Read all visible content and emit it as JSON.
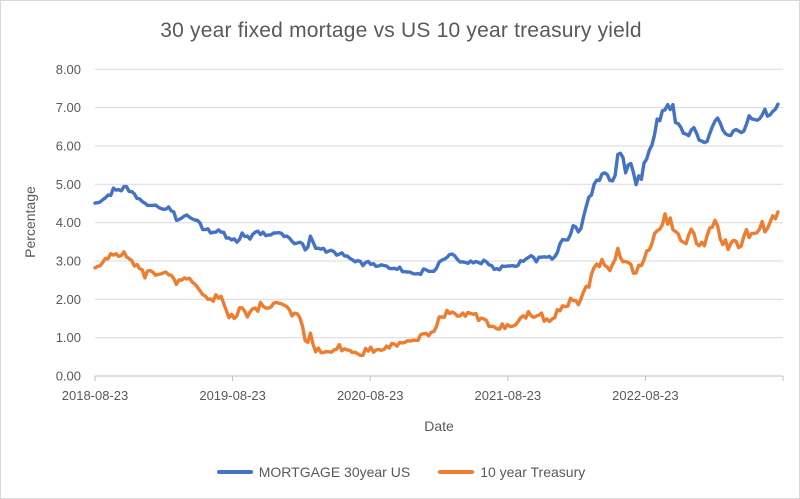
{
  "chart_data": {
    "type": "line",
    "title": "30 year fixed mortage vs US 10 year treasury yield",
    "xlabel": "Date",
    "ylabel": "Percentage",
    "grid": "horizontal",
    "legend_position": "bottom",
    "frequency": "weekly",
    "x_start": "2018-08-23",
    "x_end": "2023-08-17",
    "ylim": [
      0,
      8
    ],
    "y_ticks": [
      0,
      1,
      2,
      3,
      4,
      5,
      6,
      7,
      8
    ],
    "y_tick_labels": [
      "0.00",
      "1.00",
      "2.00",
      "3.00",
      "4.00",
      "5.00",
      "6.00",
      "7.00",
      "8.00"
    ],
    "x_tick_labels": [
      "2018-08-23",
      "2019-08-23",
      "2020-08-23",
      "2021-08-23",
      "2022-08-23"
    ],
    "colors": {
      "mortgage": "#4472C4",
      "treasury": "#ED7D31",
      "gridline": "#D9D9D9",
      "axis_line": "#BFBFBF",
      "text": "#595959",
      "frame_border": "#D9D9D9"
    },
    "series": [
      {
        "name": "MORTGAGE 30year US",
        "color": "#4472C4",
        "values": [
          4.51,
          4.52,
          4.54,
          4.6,
          4.65,
          4.72,
          4.71,
          4.9,
          4.85,
          4.86,
          4.83,
          4.94,
          4.94,
          4.81,
          4.81,
          4.75,
          4.63,
          4.62,
          4.55,
          4.51,
          4.45,
          4.45,
          4.45,
          4.46,
          4.41,
          4.37,
          4.35,
          4.35,
          4.41,
          4.31,
          4.28,
          4.06,
          4.08,
          4.12,
          4.17,
          4.2,
          4.14,
          4.1,
          4.07,
          4.06,
          3.99,
          3.82,
          3.82,
          3.84,
          3.73,
          3.75,
          3.75,
          3.81,
          3.75,
          3.75,
          3.6,
          3.6,
          3.55,
          3.58,
          3.49,
          3.56,
          3.73,
          3.64,
          3.65,
          3.57,
          3.69,
          3.75,
          3.78,
          3.69,
          3.75,
          3.66,
          3.68,
          3.68,
          3.73,
          3.73,
          3.74,
          3.72,
          3.64,
          3.65,
          3.6,
          3.51,
          3.45,
          3.47,
          3.49,
          3.45,
          3.29,
          3.36,
          3.65,
          3.5,
          3.33,
          3.33,
          3.31,
          3.33,
          3.23,
          3.26,
          3.28,
          3.24,
          3.15,
          3.18,
          3.21,
          3.13,
          3.13,
          3.07,
          3.03,
          2.98,
          3.01,
          2.99,
          2.88,
          2.96,
          2.99,
          2.91,
          2.93,
          2.86,
          2.87,
          2.9,
          2.88,
          2.87,
          2.81,
          2.8,
          2.81,
          2.78,
          2.84,
          2.72,
          2.72,
          2.71,
          2.71,
          2.67,
          2.66,
          2.67,
          2.65,
          2.79,
          2.77,
          2.73,
          2.73,
          2.73,
          2.81,
          2.97,
          3.02,
          3.05,
          3.09,
          3.17,
          3.18,
          3.13,
          3.04,
          2.97,
          2.98,
          2.96,
          2.94,
          3.0,
          2.95,
          2.99,
          2.96,
          2.93,
          3.02,
          2.98,
          2.9,
          2.88,
          2.78,
          2.8,
          2.77,
          2.87,
          2.86,
          2.87,
          2.87,
          2.88,
          2.86,
          2.88,
          3.01,
          2.99,
          3.05,
          3.09,
          3.14,
          3.09,
          2.98,
          3.1,
          3.1,
          3.11,
          3.1,
          3.12,
          3.05,
          3.11,
          3.22,
          3.45,
          3.56,
          3.55,
          3.55,
          3.69,
          3.92,
          3.89,
          3.76,
          3.85,
          4.16,
          4.42,
          4.67,
          4.72,
          5.0,
          5.11,
          5.1,
          5.27,
          5.3,
          5.25,
          5.1,
          5.09,
          5.23,
          5.78,
          5.81,
          5.7,
          5.3,
          5.51,
          5.54,
          5.3,
          4.99,
          5.22,
          5.13,
          5.55,
          5.66,
          5.89,
          6.02,
          6.29,
          6.7,
          6.66,
          6.92,
          6.94,
          7.08,
          6.95,
          7.08,
          6.61,
          6.58,
          6.49,
          6.33,
          6.31,
          6.27,
          6.42,
          6.48,
          6.33,
          6.15,
          6.13,
          6.09,
          6.12,
          6.32,
          6.5,
          6.65,
          6.73,
          6.6,
          6.42,
          6.32,
          6.28,
          6.27,
          6.39,
          6.43,
          6.39,
          6.35,
          6.39,
          6.57,
          6.79,
          6.71,
          6.69,
          6.67,
          6.71,
          6.81,
          6.96,
          6.78,
          6.81,
          6.9,
          6.96,
          7.09
        ]
      },
      {
        "name": "10 year Treasury",
        "color": "#ED7D31",
        "values": [
          2.82,
          2.86,
          2.88,
          2.97,
          3.07,
          3.06,
          3.19,
          3.15,
          3.19,
          3.12,
          3.14,
          3.24,
          3.11,
          3.06,
          3.01,
          2.87,
          2.91,
          2.8,
          2.77,
          2.56,
          2.74,
          2.75,
          2.71,
          2.63,
          2.65,
          2.66,
          2.69,
          2.71,
          2.64,
          2.63,
          2.54,
          2.39,
          2.51,
          2.5,
          2.56,
          2.53,
          2.55,
          2.45,
          2.4,
          2.32,
          2.22,
          2.12,
          2.09,
          2.0,
          2.01,
          1.95,
          2.12,
          2.03,
          2.08,
          1.89,
          1.71,
          1.52,
          1.61,
          1.5,
          1.57,
          1.78,
          1.78,
          1.69,
          1.54,
          1.67,
          1.75,
          1.77,
          1.69,
          1.92,
          1.82,
          1.77,
          1.77,
          1.8,
          1.9,
          1.92,
          1.9,
          1.88,
          1.85,
          1.81,
          1.73,
          1.57,
          1.64,
          1.62,
          1.52,
          1.3,
          0.92,
          0.88,
          1.12,
          0.83,
          0.63,
          0.73,
          0.61,
          0.61,
          0.64,
          0.63,
          0.62,
          0.68,
          0.7,
          0.82,
          0.66,
          0.71,
          0.68,
          0.67,
          0.61,
          0.62,
          0.58,
          0.54,
          0.54,
          0.72,
          0.65,
          0.75,
          0.62,
          0.68,
          0.69,
          0.67,
          0.69,
          0.78,
          0.73,
          0.85,
          0.83,
          0.78,
          0.88,
          0.86,
          0.88,
          0.92,
          0.91,
          0.93,
          0.93,
          0.93,
          1.08,
          1.1,
          1.11,
          1.05,
          1.14,
          1.16,
          1.29,
          1.54,
          1.54,
          1.53,
          1.71,
          1.63,
          1.67,
          1.63,
          1.56,
          1.57,
          1.64,
          1.56,
          1.66,
          1.63,
          1.61,
          1.63,
          1.45,
          1.51,
          1.49,
          1.45,
          1.29,
          1.3,
          1.28,
          1.23,
          1.22,
          1.36,
          1.24,
          1.34,
          1.29,
          1.3,
          1.33,
          1.41,
          1.52,
          1.57,
          1.51,
          1.68,
          1.57,
          1.53,
          1.56,
          1.59,
          1.64,
          1.43,
          1.49,
          1.42,
          1.49,
          1.52,
          1.73,
          1.7,
          1.83,
          1.81,
          1.82,
          2.03,
          1.97,
          1.97,
          1.86,
          2.01,
          2.2,
          2.34,
          2.32,
          2.66,
          2.83,
          2.92,
          2.85,
          3.04,
          2.89,
          2.84,
          2.75,
          2.91,
          3.04,
          3.33,
          3.09,
          2.98,
          2.99,
          2.96,
          2.91,
          2.68,
          2.69,
          2.89,
          2.88,
          3.03,
          3.26,
          3.29,
          3.45,
          3.71,
          3.79,
          3.83,
          3.95,
          4.23,
          3.96,
          4.12,
          3.82,
          3.77,
          3.71,
          3.53,
          3.49,
          3.45,
          3.68,
          3.83,
          3.72,
          3.45,
          3.4,
          3.49,
          3.4,
          3.66,
          3.86,
          3.88,
          4.06,
          3.92,
          3.58,
          3.43,
          3.55,
          3.3,
          3.45,
          3.54,
          3.52,
          3.35,
          3.39,
          3.65,
          3.82,
          3.61,
          3.72,
          3.72,
          3.74,
          3.84,
          4.03,
          3.76,
          3.85,
          4.01,
          4.18,
          4.1,
          4.28
        ]
      }
    ]
  }
}
